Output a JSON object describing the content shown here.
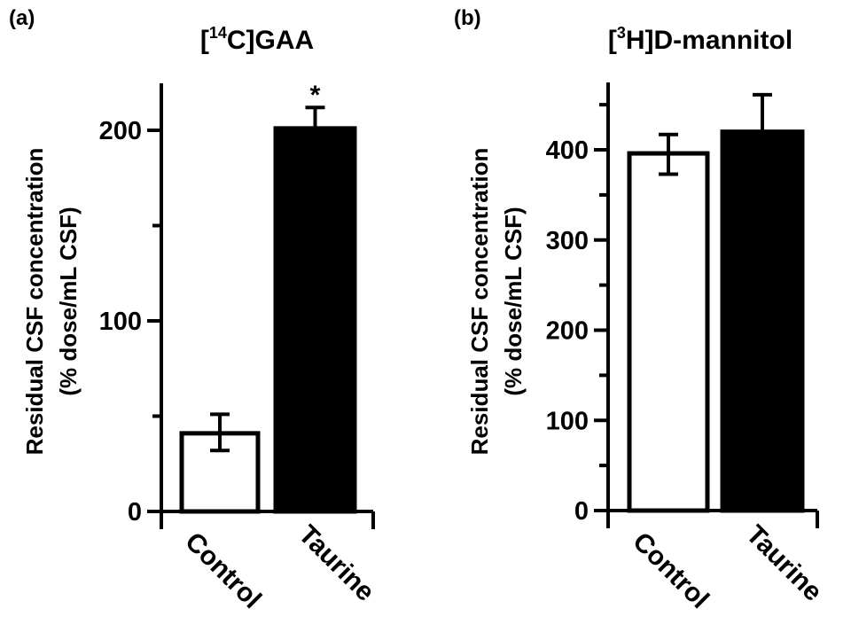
{
  "chart_data": [
    {
      "type": "bar",
      "panel_label": "(a)",
      "title_prefix": "[",
      "title_sup": "14",
      "title_suffix": "C]GAA",
      "ylabel_line1": "Residual CSF concentration",
      "ylabel_line2": "(% dose/mL CSF)",
      "categories": [
        "Control",
        "Taurine"
      ],
      "values": [
        41,
        201
      ],
      "error_upper": [
        51,
        212
      ],
      "error_lower": [
        32,
        null
      ],
      "fill_colors": [
        "#ffffff",
        "#000000"
      ],
      "annotations": [
        "",
        "*"
      ],
      "ylim": [
        0,
        225
      ],
      "major_ticks": [
        0,
        100,
        200
      ],
      "minor_ticks": [
        50,
        150
      ],
      "grid": false
    },
    {
      "type": "bar",
      "panel_label": "(b)",
      "title_prefix": "[",
      "title_sup": "3",
      "title_suffix": "H]D-mannitol",
      "ylabel_line1": "Residual CSF concentration",
      "ylabel_line2": "(% dose/mL CSF)",
      "categories": [
        "Control",
        "Taurine"
      ],
      "values": [
        396,
        420
      ],
      "error_upper": [
        417,
        461
      ],
      "error_lower": [
        373,
        null
      ],
      "fill_colors": [
        "#ffffff",
        "#000000"
      ],
      "annotations": [
        "",
        ""
      ],
      "ylim": [
        0,
        475
      ],
      "major_ticks": [
        0,
        100,
        200,
        300,
        400
      ],
      "minor_ticks": [
        50,
        150,
        250,
        350,
        450
      ],
      "grid": false
    }
  ]
}
